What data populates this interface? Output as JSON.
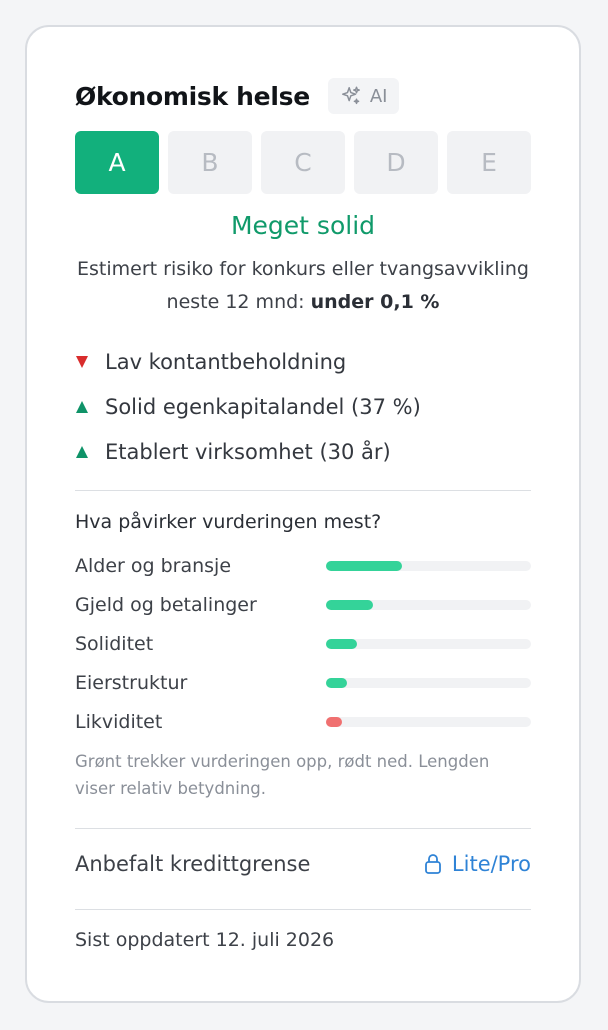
{
  "card": {
    "title": "Økonomisk helse",
    "ai_badge": "AI",
    "grades": [
      {
        "label": "A",
        "active": true
      },
      {
        "label": "B",
        "active": false
      },
      {
        "label": "C",
        "active": false
      },
      {
        "label": "D",
        "active": false
      },
      {
        "label": "E",
        "active": false
      }
    ],
    "verdict": "Meget solid",
    "risk_text": "Estimert risiko for konkurs eller tvangsavvikling neste 12 mnd:",
    "risk_value": "under 0,1 %",
    "factors": [
      {
        "direction": "down",
        "icon": "triangle-down-icon",
        "color": "#d92d2d",
        "text": "Lav kontantbeholdning"
      },
      {
        "direction": "up",
        "icon": "triangle-up-icon",
        "color": "#0f9368",
        "text": "Solid egenkapitalandel (37 %)"
      },
      {
        "direction": "up",
        "icon": "triangle-up-icon",
        "color": "#0f9368",
        "text": "Etablert virksomhet (30 år)"
      }
    ],
    "influence_title": "Hva påvirker vurderingen mest?",
    "influences": [
      {
        "label": "Alder og bransje",
        "value": 0.37,
        "color": "#34d399"
      },
      {
        "label": "Gjeld og betalinger",
        "value": 0.23,
        "color": "#34d399"
      },
      {
        "label": "Soliditet",
        "value": 0.15,
        "color": "#34d399"
      },
      {
        "label": "Eierstruktur",
        "value": 0.1,
        "color": "#34d399"
      },
      {
        "label": "Likviditet",
        "value": 0.08,
        "color": "#f07070"
      }
    ],
    "influence_note": "Grønt trekker vurderingen opp, rødt ned. Lengden viser relativ betydning.",
    "credit_label": "Anbefalt kredittgrense",
    "credit_link": "Lite/Pro",
    "updated": "Sist oppdatert 12. juli 2026"
  },
  "colors": {
    "accent": "#12b07c",
    "verdict": "#109a6a",
    "link": "#2f83d6",
    "positive": "#34d399",
    "negative": "#f07070"
  }
}
